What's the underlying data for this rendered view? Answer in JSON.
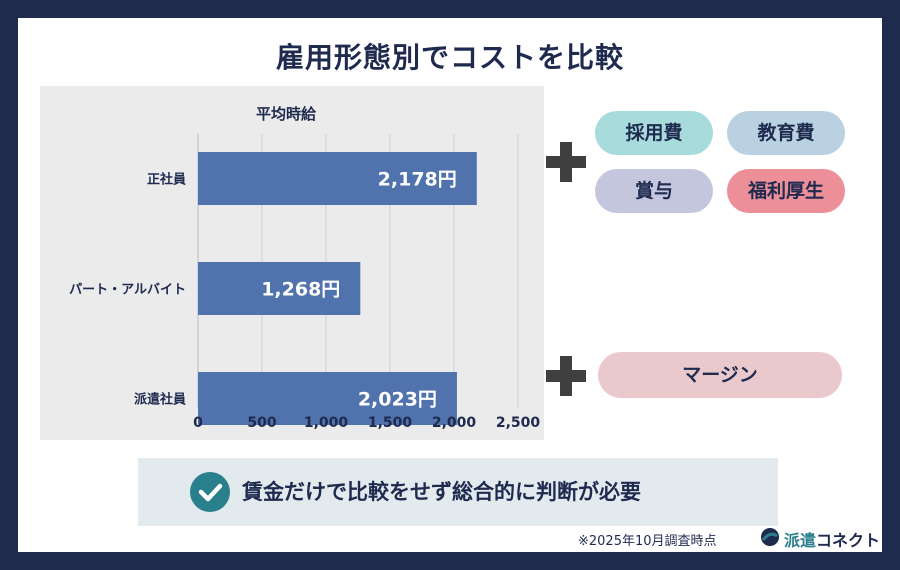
{
  "title": "雇用形態別でコストを比較",
  "chart_data": {
    "type": "bar",
    "orientation": "horizontal",
    "title": "平均時給",
    "categories": [
      "正社員",
      "パート・アルバイト",
      "派遣社員"
    ],
    "values": [
      2178,
      1268,
      2023
    ],
    "value_labels": [
      "2,178円",
      "1,268円",
      "2,023円"
    ],
    "xlim": [
      0,
      2500
    ],
    "xticks": [
      0,
      500,
      1000,
      1500,
      2000,
      2500
    ],
    "xtick_labels": [
      "0",
      "500",
      "1,000",
      "1,500",
      "2,000",
      "2,500"
    ],
    "grid": "vertical",
    "bar_color": "#5072ad"
  },
  "extras_full_time": [
    {
      "label": "採用費",
      "color": "#a8dcdc"
    },
    {
      "label": "教育費",
      "color": "#b9d1e0"
    },
    {
      "label": "賞与",
      "color": "#c4c6dd"
    },
    {
      "label": "福利厚生",
      "color": "#ec8f99"
    }
  ],
  "extras_dispatch": [
    {
      "label": "マージン",
      "color": "#eac9cd"
    }
  ],
  "note": {
    "text": "賃金だけで比較をせず総合的に判断が必要",
    "icon": "check-circle-icon"
  },
  "footnote": "※2025年10月調査時点",
  "brand": {
    "accent": "派遣",
    "rest": "コネクト",
    "icon": "brand-logo-icon"
  }
}
